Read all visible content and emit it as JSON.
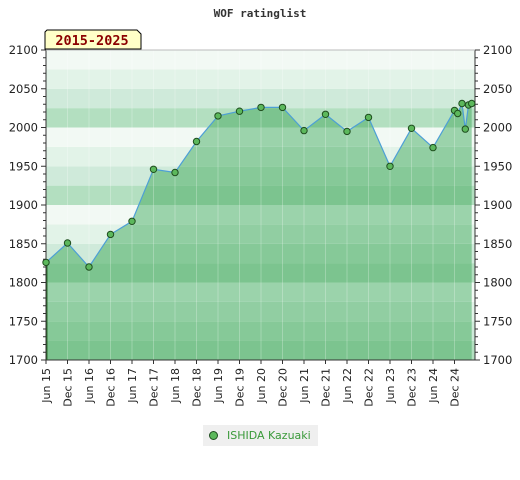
{
  "chart_data": {
    "type": "area",
    "title": "WOF ratinglist",
    "badge": "2015-2025",
    "ylim": [
      1700,
      2100
    ],
    "yticks": [
      1700,
      1750,
      1800,
      1850,
      1900,
      1950,
      2000,
      2050,
      2100
    ],
    "x_categories": [
      "Jun 15",
      "Dec 15",
      "Jun 16",
      "Dec 16",
      "Jun 17",
      "Dec 17",
      "Jun 18",
      "Dec 18",
      "Jun 19",
      "Dec 19",
      "Jun 20",
      "Dec 20",
      "Jun 21",
      "Dec 21",
      "Jun 22",
      "Dec 22",
      "Jun 23",
      "Dec 23",
      "Jun 24",
      "Dec 24"
    ],
    "series": [
      {
        "name": "ISHIDA Kazuaki",
        "x": [
          0.0,
          1.0,
          2.0,
          3.0,
          4.0,
          5.0,
          6.0,
          7.0,
          8.0,
          9.0,
          10.0,
          11.0,
          12.0,
          13.0,
          14.0,
          15.0,
          16.0,
          17.0,
          18.0,
          19.0,
          19.15,
          19.35,
          19.5,
          19.65,
          19.8
        ],
        "values": [
          1826,
          1851,
          1820,
          1862,
          1879,
          1946,
          1942,
          1982,
          2015,
          2021,
          2026,
          2026,
          1996,
          2017,
          1995,
          2013,
          1950,
          1999,
          1974,
          2022,
          2018,
          2031,
          1998,
          2029,
          2031
        ]
      }
    ],
    "grid": true,
    "legend_position": "bottom-center"
  }
}
